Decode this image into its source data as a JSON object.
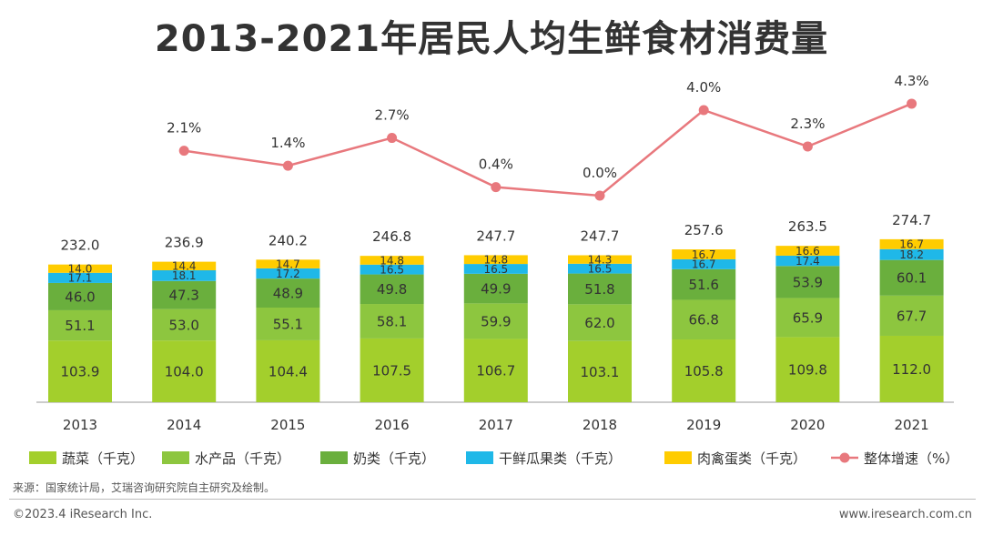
{
  "page": {
    "title": "2013-2021年居民人均生鲜食材消费量",
    "source": "来源：国家统计局，艾瑞咨询研究院自主研究及绘制。",
    "copyright": "©2023.4 iResearch Inc.",
    "website": "www.iresearch.com.cn"
  },
  "chart_data": {
    "type": "bar",
    "stacked": true,
    "title": "2013-2021年居民人均生鲜食材消费量",
    "categories": [
      "2013",
      "2014",
      "2015",
      "2016",
      "2017",
      "2018",
      "2019",
      "2020",
      "2021"
    ],
    "series": [
      {
        "name": "蔬菜（千克）",
        "color": "#a3cf2c",
        "values": [
          103.9,
          104.0,
          104.4,
          107.5,
          106.7,
          103.1,
          105.8,
          109.8,
          112.0
        ]
      },
      {
        "name": "水产品（千克）",
        "color": "#8dc63f",
        "values": [
          51.1,
          53.0,
          55.1,
          58.1,
          59.9,
          62.0,
          66.8,
          65.9,
          67.7
        ]
      },
      {
        "name": "奶类（千克）",
        "color": "#6aaf3d",
        "values": [
          46.0,
          47.3,
          48.9,
          49.8,
          49.9,
          51.8,
          51.6,
          53.9,
          60.1
        ]
      },
      {
        "name": "干鲜瓜果类（千克）",
        "color": "#1fb8e8",
        "values": [
          17.1,
          18.1,
          17.2,
          16.5,
          16.5,
          16.5,
          16.7,
          17.4,
          18.2
        ]
      },
      {
        "name": "肉禽蛋类（千克）",
        "color": "#ffcc00",
        "values": [
          14.0,
          14.4,
          14.7,
          14.8,
          14.8,
          14.3,
          16.7,
          16.6,
          16.7
        ]
      }
    ],
    "totals": [
      "232.0",
      "236.9",
      "240.2",
      "246.8",
      "247.7",
      "247.7",
      "257.6",
      "263.5",
      "274.7"
    ],
    "line": {
      "name": "整体增速（%）",
      "color": "#e8787d",
      "start_index": 1,
      "values": [
        2.1,
        1.4,
        2.7,
        0.4,
        0.0,
        4.0,
        2.3,
        4.3
      ],
      "labels": [
        "2.1%",
        "1.4%",
        "2.7%",
        "0.4%",
        "0.0%",
        "4.0%",
        "2.3%",
        "4.3%"
      ]
    },
    "legend_position": "bottom",
    "grid": false
  }
}
